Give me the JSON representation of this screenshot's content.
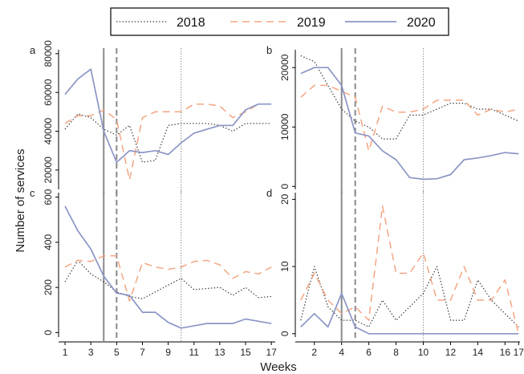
{
  "legend": {
    "entries": [
      {
        "name": "2018",
        "color": "#333333",
        "style": "dotted"
      },
      {
        "name": "2019",
        "color": "#f4a582",
        "style": "dashed"
      },
      {
        "name": "2020",
        "color": "#8c96c6",
        "style": "solid"
      }
    ]
  },
  "xlabel": "Weeks",
  "ylabel": "Number of services",
  "markers": {
    "lines": [
      {
        "week": 4,
        "color": "#8a8a8a",
        "style": "solid"
      },
      {
        "week": 5,
        "color": "#8a8a8a",
        "style": "dashed"
      },
      {
        "week": 10,
        "color": "#8a8a8a",
        "style": "dotted"
      }
    ]
  },
  "chart_data": [
    {
      "type": "line",
      "panel": "a",
      "x": [
        1,
        2,
        3,
        4,
        5,
        6,
        7,
        8,
        9,
        10,
        11,
        12,
        13,
        14,
        15,
        16,
        17
      ],
      "xticks": [
        1,
        3,
        5,
        7,
        9,
        11,
        13,
        15,
        17
      ],
      "yticks": [
        20000,
        40000,
        60000,
        80000
      ],
      "ylim": [
        10000,
        82000
      ],
      "xlim": [
        0.5,
        17.3
      ],
      "series": [
        {
          "name": "2018",
          "values": [
            41000,
            49000,
            47000,
            41000,
            38000,
            43000,
            24000,
            25000,
            43000,
            44000,
            44000,
            44000,
            43000,
            40000,
            44000,
            44000,
            44000
          ]
        },
        {
          "name": "2019",
          "values": [
            44000,
            48000,
            48000,
            51000,
            46000,
            15000,
            47000,
            50000,
            50000,
            50000,
            54000,
            54000,
            53000,
            47000,
            50000,
            54000,
            54000
          ]
        },
        {
          "name": "2020",
          "values": [
            59000,
            67000,
            72000,
            40000,
            24000,
            30000,
            29000,
            30000,
            28000,
            34000,
            39000,
            41000,
            43000,
            43000,
            51000,
            54000,
            54000
          ]
        }
      ]
    },
    {
      "type": "line",
      "panel": "b",
      "x": [
        1,
        2,
        3,
        4,
        5,
        6,
        7,
        8,
        9,
        10,
        11,
        12,
        13,
        14,
        15,
        16,
        17
      ],
      "xticks": [
        2,
        4,
        6,
        8,
        10,
        12,
        14,
        16
      ],
      "yticks": [
        0,
        10000,
        20000
      ],
      "ylim": [
        -500,
        23000
      ],
      "xlim": [
        0.6,
        17.1
      ],
      "series": [
        {
          "name": "2018",
          "values": [
            22000,
            21000,
            17000,
            13000,
            11000,
            10000,
            8000,
            8000,
            12000,
            12000,
            13000,
            14000,
            14000,
            13000,
            13000,
            12000,
            11000
          ]
        },
        {
          "name": "2019",
          "values": [
            15000,
            17000,
            17000,
            16000,
            15000,
            6000,
            13500,
            12500,
            12500,
            13000,
            14500,
            14500,
            14500,
            12000,
            13000,
            12500,
            13000
          ]
        },
        {
          "name": "2020",
          "values": [
            19000,
            20000,
            20000,
            17000,
            9000,
            8500,
            6000,
            4500,
            1500,
            1200,
            1300,
            2000,
            4500,
            4800,
            5200,
            5700,
            5500
          ]
        }
      ]
    },
    {
      "type": "line",
      "panel": "c",
      "x": [
        1,
        2,
        3,
        4,
        5,
        6,
        7,
        8,
        9,
        10,
        11,
        12,
        13,
        14,
        15,
        16,
        17
      ],
      "xticks": [
        1,
        3,
        5,
        7,
        9,
        11,
        13,
        15,
        17
      ],
      "yticks": [
        0,
        200,
        400,
        600
      ],
      "ylim": [
        -20,
        620
      ],
      "xlim": [
        0.5,
        17.3
      ],
      "series": [
        {
          "name": "2018",
          "values": [
            225,
            320,
            260,
            225,
            180,
            160,
            150,
            180,
            210,
            240,
            190,
            195,
            200,
            165,
            200,
            155,
            160
          ]
        },
        {
          "name": "2019",
          "values": [
            290,
            320,
            315,
            340,
            340,
            140,
            310,
            290,
            280,
            290,
            315,
            320,
            300,
            240,
            270,
            260,
            290
          ]
        },
        {
          "name": "2020",
          "values": [
            560,
            450,
            370,
            250,
            175,
            165,
            90,
            90,
            45,
            20,
            30,
            40,
            40,
            40,
            60,
            50,
            40
          ]
        }
      ]
    },
    {
      "type": "line",
      "panel": "d",
      "x": [
        1,
        2,
        3,
        4,
        5,
        6,
        7,
        8,
        9,
        10,
        11,
        12,
        13,
        14,
        15,
        16,
        17
      ],
      "xticks": [
        2,
        4,
        6,
        8,
        10,
        12,
        14,
        16,
        17
      ],
      "yticks": [
        0,
        10,
        20
      ],
      "ylim": [
        -0.5,
        21
      ],
      "xlim": [
        0.6,
        17.1
      ],
      "series": [
        {
          "name": "2018",
          "values": [
            2,
            10,
            4,
            2,
            2,
            1,
            5,
            2,
            4,
            6,
            10,
            2,
            2,
            8,
            5,
            3,
            1
          ]
        },
        {
          "name": "2019",
          "values": [
            5,
            9,
            5,
            3,
            4,
            2,
            19,
            9,
            9,
            12,
            5,
            5,
            10,
            5,
            5,
            8,
            0
          ]
        },
        {
          "name": "2020",
          "values": [
            1,
            3,
            1,
            6,
            1,
            0,
            0,
            0,
            0,
            0,
            0,
            0,
            0,
            0,
            0,
            0,
            0
          ]
        }
      ]
    }
  ],
  "panels": [
    {
      "label": "a",
      "x0": 73,
      "x1": 343,
      "y0": 62,
      "y1": 236
    },
    {
      "label": "b",
      "x0": 368,
      "x1": 648,
      "y0": 62,
      "y1": 236
    },
    {
      "label": "c",
      "x0": 73,
      "x1": 343,
      "y0": 240,
      "y1": 420
    },
    {
      "label": "d",
      "x0": 368,
      "x1": 648,
      "y0": 240,
      "y1": 420
    }
  ]
}
